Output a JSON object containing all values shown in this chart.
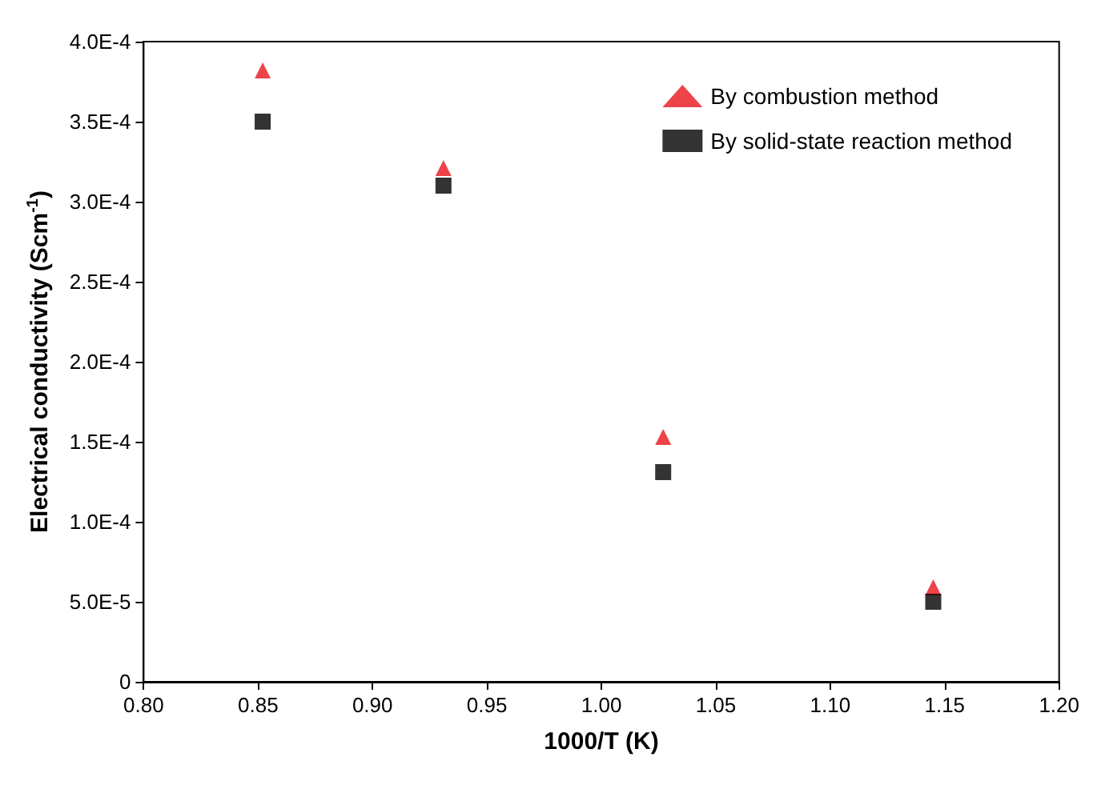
{
  "chart_data": {
    "type": "scatter",
    "xlabel": "1000/T (K)",
    "ylabel": "Electrical conductivity (Scm$^{-1}$)",
    "x": [
      0.852,
      0.931,
      1.027,
      1.145
    ],
    "series": [
      {
        "name": "By combustion method",
        "color": "#e8141c",
        "marker": "triangle",
        "values": [
          0.000382,
          0.000321,
          0.000153,
          5.9e-05
        ]
      },
      {
        "name": "By solid-state reaction method",
        "color": "#000000",
        "marker": "square",
        "values": [
          0.00035,
          0.00031,
          0.000131,
          5e-05
        ]
      }
    ],
    "xlim": [
      0.8,
      1.2
    ],
    "xticks": [
      {
        "value": 0.8,
        "label": "0.80"
      },
      {
        "value": 0.85,
        "label": "0.85"
      },
      {
        "value": 0.9,
        "label": "0.90"
      },
      {
        "value": 0.95,
        "label": "0.95"
      },
      {
        "value": 1.0,
        "label": "1.00"
      },
      {
        "value": 1.05,
        "label": "1.05"
      },
      {
        "value": 1.1,
        "label": "1.10"
      },
      {
        "value": 1.15,
        "label": "1.15"
      },
      {
        "value": 1.2,
        "label": "1.20"
      }
    ],
    "ylim": [
      0,
      0.0004
    ],
    "yticks": [
      0,
      {
        "value": 5e-05,
        "label": "5.0E-5"
      },
      {
        "value": 0.0001,
        "label": "1.0E-4"
      },
      {
        "value": 0.00015,
        "label": "1.5E-4"
      },
      {
        "value": 0.0002,
        "label": "2.0E-4"
      },
      {
        "value": 0.00025,
        "label": "2.5E-4"
      },
      {
        "value": 0.0003,
        "label": "3.0E-4"
      },
      {
        "value": 0.00035,
        "label": "3.5E-4"
      },
      {
        "value": 0.0004,
        "label": "4.0E-4"
      }
    ],
    "grid": false,
    "legend": "top right"
  }
}
